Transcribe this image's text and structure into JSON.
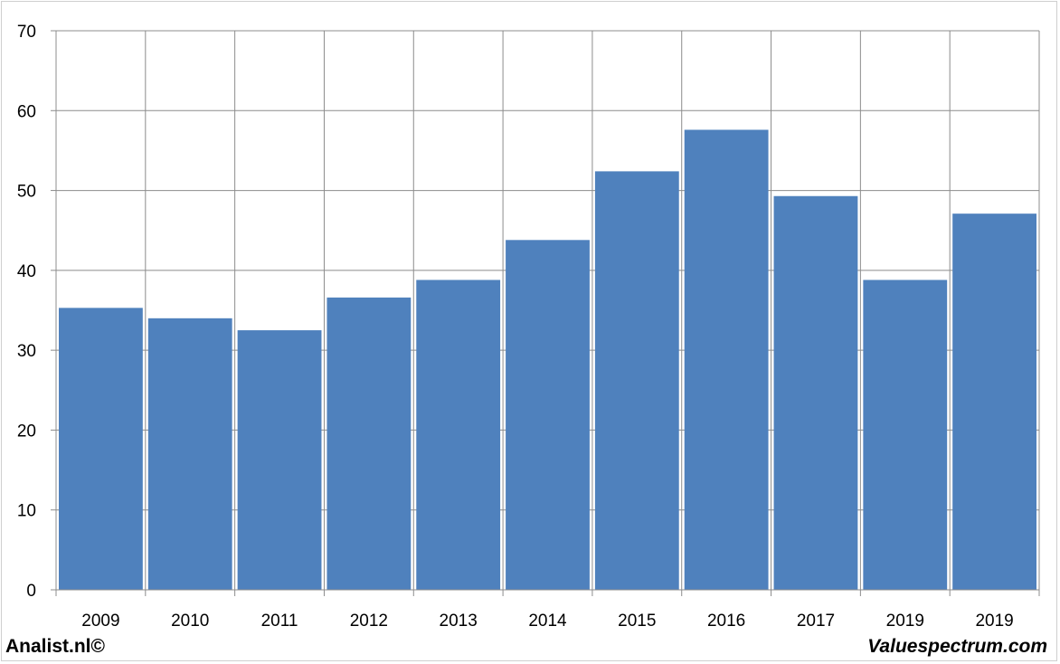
{
  "chart_data": {
    "type": "bar",
    "title": "",
    "xlabel": "",
    "ylabel": "",
    "categories": [
      "2009",
      "2010",
      "2011",
      "2012",
      "2013",
      "2014",
      "2015",
      "2016",
      "2017",
      "2019",
      "2019"
    ],
    "values": [
      35.3,
      34.0,
      32.5,
      36.6,
      38.8,
      43.8,
      52.4,
      57.6,
      49.3,
      38.8,
      47.1
    ],
    "ylim": [
      0,
      70
    ],
    "yticks": [
      0,
      10,
      20,
      30,
      40,
      50,
      60,
      70
    ],
    "grid": true,
    "legend": "none",
    "colors": {
      "bar": "#4f81bd",
      "grid": "#8c8c8c",
      "axis": "#8c8c8c"
    }
  },
  "footer": {
    "left": "Analist.nl©",
    "right": "Valuespectrum.com"
  }
}
